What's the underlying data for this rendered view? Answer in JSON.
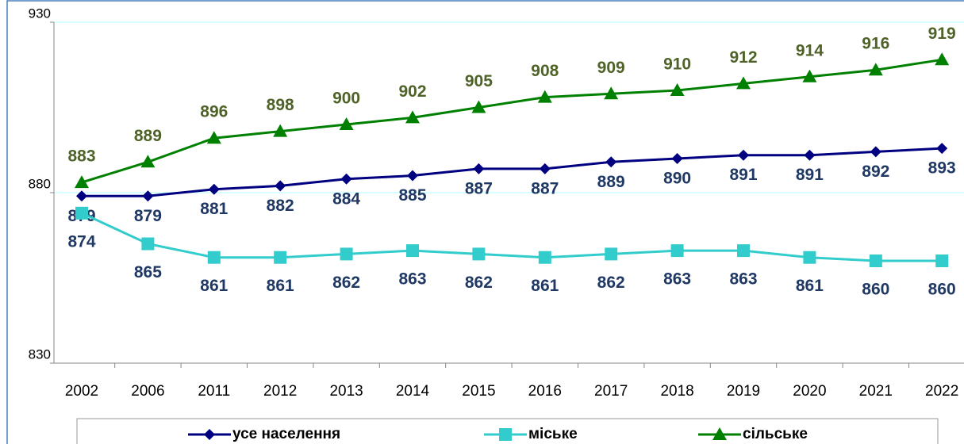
{
  "chart_data": {
    "type": "line",
    "categories": [
      "2002",
      "2006",
      "2011",
      "2012",
      "2013",
      "2014",
      "2015",
      "2016",
      "2017",
      "2018",
      "2019",
      "2020",
      "2021",
      "2022"
    ],
    "series": [
      {
        "name": "усе населення",
        "color": "#000080",
        "marker": "diamond",
        "label_color": "#1f3864",
        "label_position": "below",
        "values": [
          879,
          879,
          881,
          882,
          884,
          885,
          887,
          887,
          889,
          890,
          891,
          891,
          892,
          893
        ]
      },
      {
        "name": "міське",
        "color": "#33cccc",
        "marker": "square",
        "label_color": "#1f3864",
        "label_position": "below",
        "values": [
          874,
          865,
          861,
          861,
          862,
          863,
          862,
          861,
          862,
          863,
          863,
          861,
          860,
          860
        ]
      },
      {
        "name": "сільське",
        "color": "#008000",
        "marker": "triangle",
        "label_color": "#4f6228",
        "label_position": "above",
        "values": [
          883,
          889,
          896,
          898,
          900,
          902,
          905,
          908,
          909,
          910,
          912,
          914,
          916,
          919
        ]
      }
    ],
    "ylim": [
      830,
      930
    ],
    "yticks": [
      830,
      880,
      930
    ],
    "grid": true,
    "grid_color": "#ccffff",
    "legend": "bottom"
  }
}
